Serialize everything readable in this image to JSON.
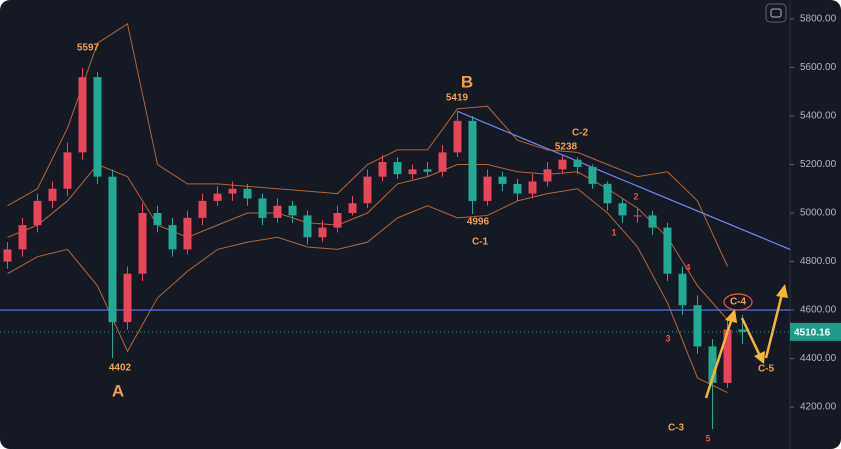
{
  "chart_data": {
    "type": "candlestick",
    "open": [
      4800,
      4850,
      4950,
      5050,
      5100,
      5250,
      5560,
      5150,
      4550,
      4750,
      5000,
      4950,
      4850,
      4980,
      5050,
      5080,
      5100,
      5060,
      4980,
      5030,
      4990,
      4900,
      4940,
      5000,
      5040,
      5150,
      5210,
      5160,
      5180,
      5170,
      5250,
      5380,
      5050,
      5150,
      5120,
      5080,
      5130,
      5180,
      5220,
      5190,
      5120,
      5040,
      4990,
      4990,
      4940,
      4750,
      4620,
      4450,
      4300,
      4520
    ],
    "high": [
      4880,
      4980,
      5080,
      5130,
      5290,
      5597,
      5580,
      5180,
      4780,
      5040,
      5030,
      4980,
      5010,
      5080,
      5110,
      5130,
      5120,
      5080,
      5060,
      5050,
      5010,
      4970,
      5030,
      5070,
      5180,
      5240,
      5230,
      5200,
      5210,
      5280,
      5419,
      5400,
      5180,
      5170,
      5140,
      5160,
      5210,
      5238,
      5230,
      5200,
      5130,
      5060,
      5020,
      5010,
      4960,
      4780,
      4660,
      4480,
      4560,
      4580
    ],
    "low": [
      4770,
      4820,
      4920,
      5020,
      5070,
      5220,
      5120,
      4402,
      4520,
      4720,
      4920,
      4820,
      4830,
      4950,
      5030,
      5050,
      5030,
      4950,
      4960,
      4960,
      4870,
      4880,
      4920,
      4990,
      5020,
      5130,
      5140,
      5140,
      5150,
      5150,
      5230,
      4996,
      5030,
      5090,
      5050,
      5060,
      5110,
      5160,
      5160,
      5100,
      5010,
      4960,
      4960,
      4910,
      4720,
      4580,
      4420,
      4110,
      4280,
      4460
    ],
    "close": [
      4850,
      4950,
      5050,
      5100,
      5250,
      5560,
      5150,
      4550,
      4750,
      5000,
      4950,
      4850,
      4980,
      5050,
      5080,
      5100,
      5060,
      4980,
      5030,
      4990,
      4900,
      4940,
      5000,
      5040,
      5150,
      5210,
      5160,
      5180,
      5170,
      5250,
      5380,
      5050,
      5150,
      5120,
      5080,
      5130,
      5180,
      5220,
      5190,
      5120,
      5040,
      4990,
      4990,
      4940,
      4750,
      4620,
      4450,
      4300,
      4520,
      4510.16
    ],
    "up_color": "#e8445a",
    "down_color": "#22ab94",
    "bands": {
      "x": [
        0,
        2,
        4,
        6,
        8,
        10,
        12,
        14,
        16,
        18,
        20,
        22,
        24,
        26,
        28,
        30,
        32,
        34,
        36,
        38,
        40,
        42,
        44,
        46,
        48
      ],
      "color": "#b0653a",
      "series": [
        {
          "values": [
            5030,
            5100,
            5350,
            5700,
            5780,
            5200,
            5120,
            5120,
            5110,
            5100,
            5090,
            5080,
            5200,
            5260,
            5260,
            5430,
            5440,
            5300,
            5260,
            5250,
            5200,
            5150,
            5170,
            5050,
            4780
          ]
        },
        {
          "values": [
            4900,
            4950,
            5050,
            5200,
            5150,
            4950,
            4900,
            4950,
            5000,
            5000,
            4960,
            4950,
            5000,
            5120,
            5150,
            5200,
            5200,
            5170,
            5160,
            5170,
            5100,
            5020,
            4900,
            4700,
            4560
          ]
        },
        {
          "values": [
            4750,
            4820,
            4850,
            4700,
            4430,
            4650,
            4760,
            4850,
            4880,
            4900,
            4860,
            4850,
            4880,
            4980,
            5030,
            4980,
            4990,
            5050,
            5080,
            5100,
            5000,
            4860,
            4630,
            4320,
            4260
          ]
        }
      ]
    },
    "hline": 4600,
    "trendline": [
      5419,
      4850
    ],
    "last_price": 4510.16,
    "ylim": [
      4118,
      5878
    ],
    "yticks": [
      {
        "value": 5800,
        "label": "5800.00"
      },
      {
        "value": 5600,
        "label": "5600.00"
      },
      {
        "value": 5400,
        "label": "5400.00"
      },
      {
        "value": 5200,
        "label": "5200.00"
      },
      {
        "value": 5000,
        "label": "5000.00"
      },
      {
        "value": 4800,
        "label": "4800.00"
      },
      {
        "value": 4600,
        "label": "4600.00"
      },
      {
        "value": 4400,
        "label": "4400.00"
      },
      {
        "value": 4200,
        "label": "4200.00"
      }
    ],
    "annotations": [
      "5597",
      "A",
      "4402",
      "B",
      "5419",
      "4996",
      "C-1",
      "5238",
      "C-2",
      "1",
      "2",
      "3",
      "4",
      "5",
      "C-3",
      "C-4",
      "C-5"
    ]
  }
}
